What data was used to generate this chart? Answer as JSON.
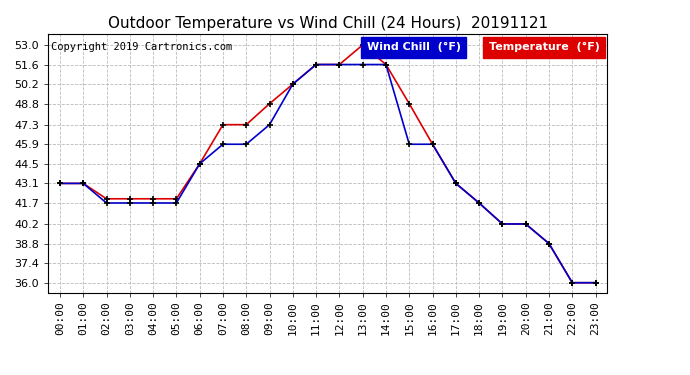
{
  "title": "Outdoor Temperature vs Wind Chill (24 Hours)  20191121",
  "copyright": "Copyright 2019 Cartronics.com",
  "legend_wind_chill": "Wind Chill  (°F)",
  "legend_temp": "Temperature  (°F)",
  "background_color": "#ffffff",
  "plot_bg_color": "#ffffff",
  "grid_color": "#bbbbbb",
  "x_labels": [
    "00:00",
    "01:00",
    "02:00",
    "03:00",
    "04:00",
    "05:00",
    "06:00",
    "07:00",
    "08:00",
    "09:00",
    "10:00",
    "11:00",
    "12:00",
    "13:00",
    "14:00",
    "15:00",
    "16:00",
    "17:00",
    "18:00",
    "19:00",
    "20:00",
    "21:00",
    "22:00",
    "23:00"
  ],
  "yticks": [
    36.0,
    37.4,
    38.8,
    40.2,
    41.7,
    43.1,
    44.5,
    45.9,
    47.3,
    48.8,
    50.2,
    51.6,
    53.0
  ],
  "ylim": [
    35.3,
    53.8
  ],
  "temperature": [
    43.1,
    43.1,
    42.0,
    42.0,
    42.0,
    42.0,
    44.5,
    47.3,
    47.3,
    48.8,
    50.2,
    51.6,
    51.6,
    53.0,
    51.6,
    48.8,
    45.9,
    43.1,
    41.7,
    40.2,
    40.2,
    38.8,
    36.0,
    36.0
  ],
  "wind_chill": [
    43.1,
    43.1,
    41.7,
    41.7,
    41.7,
    41.7,
    44.5,
    45.9,
    45.9,
    47.3,
    50.2,
    51.6,
    51.6,
    51.6,
    51.6,
    45.9,
    45.9,
    43.1,
    41.7,
    40.2,
    40.2,
    38.8,
    36.0,
    36.0
  ],
  "temp_color": "#dd0000",
  "wind_chill_color": "#0000cc",
  "marker": "+",
  "marker_color": "#000000",
  "title_fontsize": 11,
  "copyright_fontsize": 7.5,
  "tick_fontsize": 8,
  "legend_fontsize": 8
}
